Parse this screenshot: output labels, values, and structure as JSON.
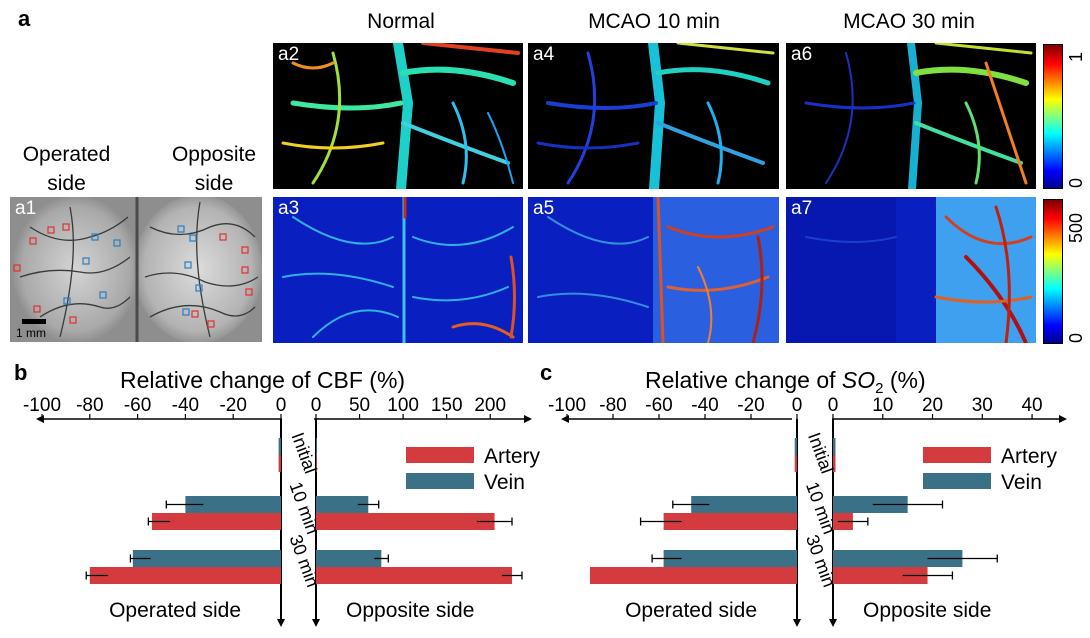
{
  "figure": {
    "panel_letters": {
      "a": "a",
      "b": "b",
      "c": "c"
    },
    "column_titles": [
      "Normal",
      "MCAO 10 min",
      "MCAO 30 min"
    ],
    "side_labels": {
      "operated": [
        "Operated",
        "side"
      ],
      "opposite": [
        "Opposite",
        "side"
      ]
    },
    "image_panels": [
      "a1",
      "a2",
      "a3",
      "a4",
      "a5",
      "a6",
      "a7"
    ],
    "scale_bar": "1 mm",
    "colorbar_top": {
      "max": "1",
      "min": "0"
    },
    "colorbar_bottom": {
      "max": "500",
      "min": "0"
    },
    "colors": {
      "artery": "#d43b3f",
      "vein": "#3b7187",
      "roi_red": "#e03030",
      "roi_blue": "#2a7fc0"
    }
  },
  "chart_data": [
    {
      "type": "bar",
      "title_prefix": "Relative change of CBF (%)",
      "title_italic": "",
      "title_suffix": "",
      "left_axis": {
        "ticks": [
          "-100",
          "-80",
          "-60",
          "-40",
          "-20",
          "0"
        ],
        "range": [
          -100,
          0
        ]
      },
      "right_axis": {
        "ticks": [
          "0",
          "50",
          "100",
          "150",
          "200"
        ],
        "range": [
          0,
          225
        ]
      },
      "categories": [
        "Initial",
        "10 min",
        "30 min"
      ],
      "legend": [
        "Artery",
        "Vein"
      ],
      "side_labels": [
        "Operated side",
        "Opposite side"
      ],
      "series": [
        {
          "name": "Artery",
          "left": [
            -1,
            -54,
            -80
          ],
          "left_err": [
            0,
            1.5,
            1.5
          ],
          "right": [
            1,
            205,
            240
          ],
          "right_err": [
            0,
            20,
            10
          ]
        },
        {
          "name": "Vein",
          "left": [
            -1,
            -40,
            -62
          ],
          "left_err": [
            0,
            8,
            1
          ],
          "right": [
            1,
            60,
            75
          ],
          "right_err": [
            0,
            12,
            8
          ]
        }
      ]
    },
    {
      "type": "bar",
      "title_prefix": "Relative change of ",
      "title_italic": "SO",
      "title_sub": "2",
      "title_suffix": " (%)",
      "left_axis": {
        "ticks": [
          "-100",
          "-80",
          "-60",
          "-40",
          "-20",
          "0"
        ],
        "range": [
          -100,
          0
        ]
      },
      "right_axis": {
        "ticks": [
          "0",
          "10",
          "20",
          "30",
          "40"
        ],
        "range": [
          0,
          43
        ]
      },
      "categories": [
        "Initial",
        "10 min",
        "30 min"
      ],
      "legend": [
        "Artery",
        "Vein"
      ],
      "side_labels": [
        "Operated side",
        "Opposite side"
      ],
      "series": [
        {
          "name": "Artery",
          "left": [
            -1,
            -58,
            -90
          ],
          "left_err": [
            0,
            10,
            0
          ],
          "right": [
            0.5,
            4,
            19
          ],
          "right_err": [
            0,
            3,
            5
          ]
        },
        {
          "name": "Vein",
          "left": [
            -1,
            -46,
            -58
          ],
          "left_err": [
            0,
            8,
            5
          ],
          "right": [
            0.5,
            15,
            26
          ],
          "right_err": [
            0,
            7,
            7
          ]
        }
      ]
    }
  ]
}
